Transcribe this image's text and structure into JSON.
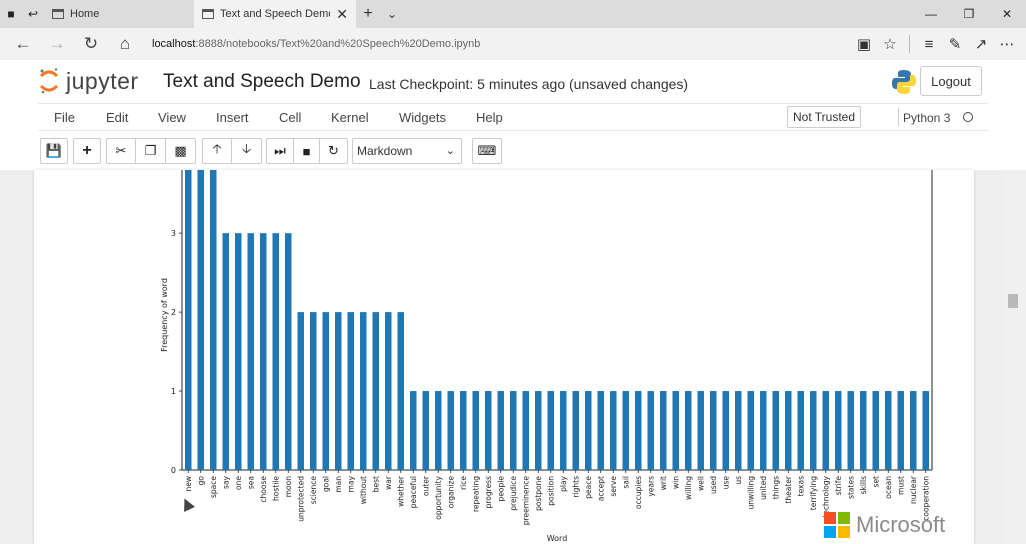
{
  "browser": {
    "tabs": [
      {
        "label": "Home"
      },
      {
        "label": "Text and Speech Demo"
      }
    ],
    "url_host": "localhost",
    "url_rest": ":8888/notebooks/Text%20and%20Speech%20Demo.ipynb"
  },
  "jupyter": {
    "brand": "jupyter",
    "notebook_title": "Text and Speech Demo",
    "checkpoint": "Last Checkpoint: 5 minutes ago (unsaved changes)",
    "logout_label": "Logout",
    "menu": [
      "File",
      "Edit",
      "View",
      "Insert",
      "Cell",
      "Kernel",
      "Widgets",
      "Help"
    ],
    "trust_label": "Not Trusted",
    "kernel_name": "Python 3",
    "cell_type": "Markdown"
  },
  "icons": {
    "back": "arrow-left-icon",
    "forward": "arrow-right-icon",
    "reload": "reload-icon",
    "home": "home-icon"
  },
  "colors": {
    "bar": "#1f77b4",
    "jupyter_orange": "#f37726"
  },
  "watermark": {
    "text": "Microsoft"
  },
  "chart_data": {
    "type": "bar",
    "xlabel": "Word",
    "ylabel": "Frequency of word",
    "ylim": [
      0,
      3.8
    ],
    "yticks": [
      0,
      1,
      2,
      3
    ],
    "categories": [
      "new",
      "go",
      "space",
      "say",
      "one",
      "sea",
      "choose",
      "hostile",
      "moon",
      "unprotected",
      "science",
      "goal",
      "man",
      "may",
      "without",
      "best",
      "war",
      "whether",
      "peaceful",
      "outer",
      "opportunity",
      "organize",
      "rice",
      "repeating",
      "progress",
      "people",
      "prejudice",
      "preeminence",
      "postpone",
      "position",
      "play",
      "rights",
      "peace",
      "accept",
      "serve",
      "sail",
      "occupies",
      "years",
      "writ",
      "win",
      "willing",
      "well",
      "used",
      "use",
      "us",
      "unwilling",
      "united",
      "things",
      "theater",
      "texas",
      "terrifying",
      "technology",
      "strife",
      "states",
      "skills",
      "set",
      "ocean",
      "must",
      "nuclear",
      "cooperation"
    ],
    "values": [
      4,
      4,
      4,
      3,
      3,
      3,
      3,
      3,
      3,
      2,
      2,
      2,
      2,
      2,
      2,
      2,
      2,
      2,
      1,
      1,
      1,
      1,
      1,
      1,
      1,
      1,
      1,
      1,
      1,
      1,
      1,
      1,
      1,
      1,
      1,
      1,
      1,
      1,
      1,
      1,
      1,
      1,
      1,
      1,
      1,
      1,
      1,
      1,
      1,
      1,
      1,
      1,
      1,
      1,
      1,
      1,
      1,
      1,
      1,
      1
    ]
  }
}
